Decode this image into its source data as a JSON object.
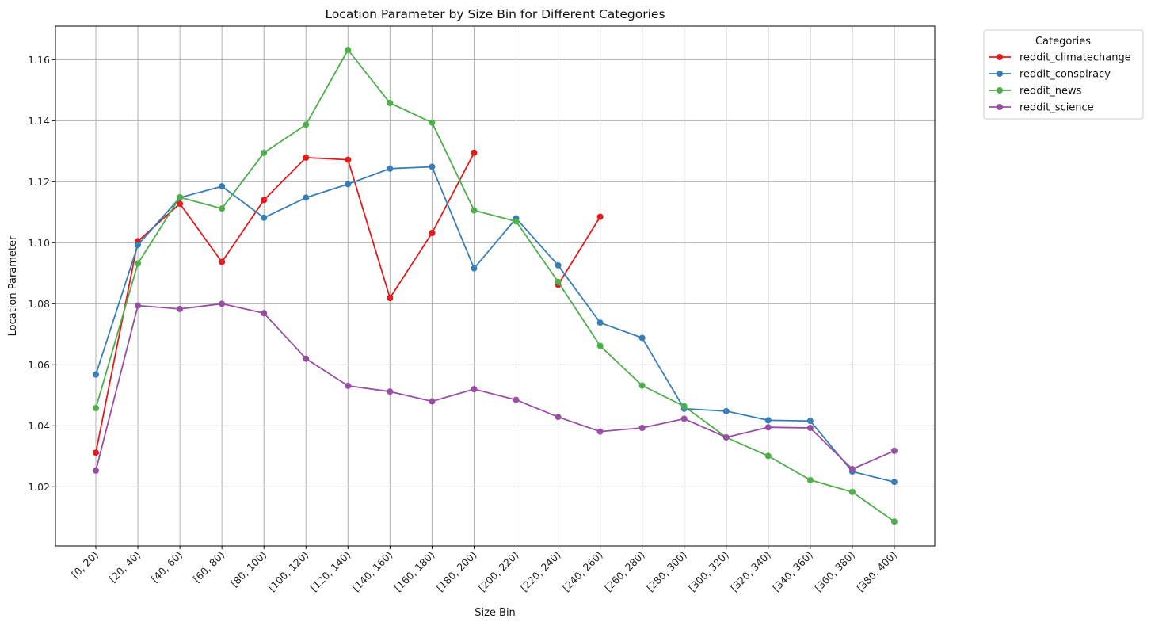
{
  "chart_data": {
    "type": "line",
    "title": "Location Parameter by Size Bin for Different Categories",
    "xlabel": "Size Bin",
    "ylabel": "Location Parameter",
    "categories": [
      "[0, 20)",
      "[20, 40)",
      "[40, 60)",
      "[60, 80)",
      "[80, 100)",
      "[100, 120)",
      "[120, 140)",
      "[140, 160)",
      "[160, 180)",
      "[180, 200)",
      "[200, 220)",
      "[220, 240)",
      "[240, 260)",
      "[260, 280)",
      "[280, 300)",
      "[300, 320)",
      "[320, 340)",
      "[340, 360)",
      "[360, 380)",
      "[380, 400)"
    ],
    "ylim": [
      1.0006,
      1.171
    ],
    "yticks": [
      1.02,
      1.04,
      1.06,
      1.08,
      1.1,
      1.12,
      1.14,
      1.16
    ],
    "ytick_labels": [
      "1.02",
      "1.04",
      "1.06",
      "1.08",
      "1.10",
      "1.12",
      "1.14",
      "1.16"
    ],
    "grid": true,
    "legend": {
      "title": "Categories",
      "placement": "outside-right-top"
    },
    "series": [
      {
        "name": "reddit_climatechange",
        "color": "#e41a1c",
        "values": [
          1.0312,
          1.1005,
          1.1128,
          1.0937,
          1.114,
          1.1279,
          1.1272,
          1.0819,
          1.1032,
          1.1295,
          null,
          1.0862,
          1.1085,
          null,
          null,
          null,
          null,
          null,
          null,
          null
        ]
      },
      {
        "name": "reddit_conspiracy",
        "color": "#377eb8",
        "values": [
          1.0568,
          1.0993,
          1.1148,
          1.1185,
          1.1082,
          1.1148,
          1.1192,
          1.1243,
          1.1249,
          1.0916,
          1.108,
          1.0926,
          1.0738,
          1.0688,
          1.0456,
          1.0448,
          1.0418,
          1.0416,
          1.025,
          1.0216
        ]
      },
      {
        "name": "reddit_news",
        "color": "#4daf4a",
        "values": [
          1.0458,
          1.0932,
          1.1149,
          1.1112,
          1.1295,
          1.1387,
          1.1632,
          1.1458,
          1.1394,
          1.1106,
          1.107,
          1.0872,
          1.0662,
          1.0532,
          1.0464,
          1.0362,
          1.0301,
          1.0222,
          1.0183,
          1.0086
        ]
      },
      {
        "name": "reddit_science",
        "color": "#984ea3",
        "values": [
          1.0253,
          1.0794,
          1.0783,
          1.08,
          1.0769,
          1.062,
          1.0531,
          1.0512,
          1.048,
          1.052,
          1.0485,
          1.0429,
          1.0381,
          1.0393,
          1.0423,
          1.0362,
          1.0395,
          1.0393,
          1.0258,
          1.0318
        ]
      }
    ]
  }
}
